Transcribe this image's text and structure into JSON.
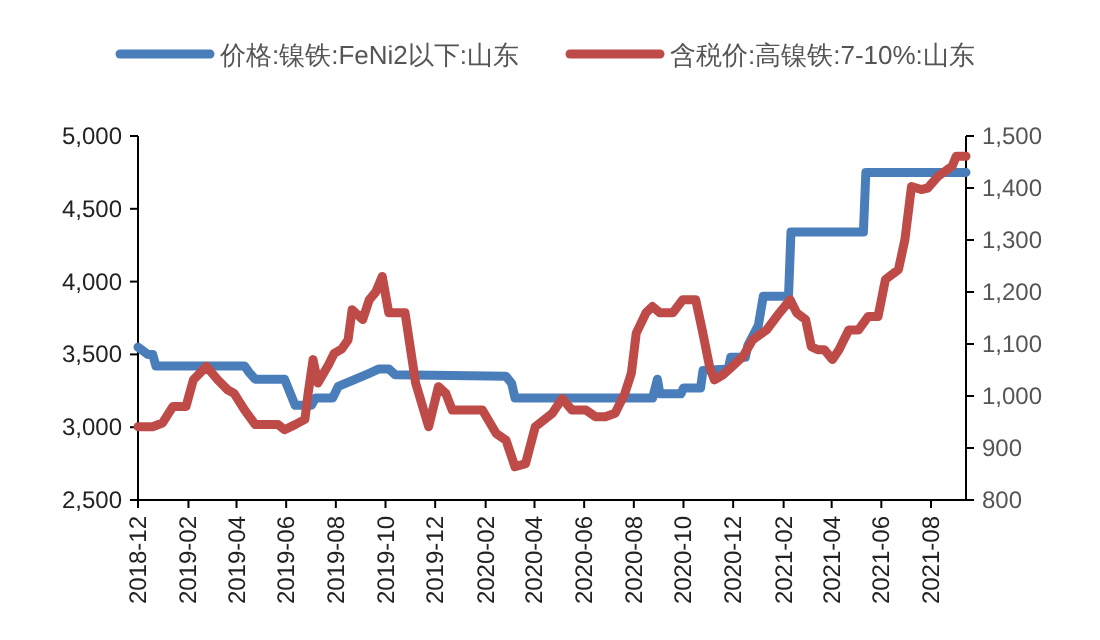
{
  "chart_data": {
    "type": "line",
    "legend": "top",
    "xlim": [
      "2018-12-01",
      "2021-09-13"
    ],
    "xticks": [
      "2018-12",
      "2019-02",
      "2019-04",
      "2019-06",
      "2019-08",
      "2019-10",
      "2019-12",
      "2020-02",
      "2020-04",
      "2020-06",
      "2020-08",
      "2020-10",
      "2020-12",
      "2021-02",
      "2021-04",
      "2021-06",
      "2021-08"
    ],
    "ylim": [
      2500,
      5000
    ],
    "yticks": [
      {
        "value": 2500,
        "label": "2,500"
      },
      {
        "value": 3000,
        "label": "3,000"
      },
      {
        "value": 3500,
        "label": "3,500"
      },
      {
        "value": 4000,
        "label": "4,000"
      },
      {
        "value": 4500,
        "label": "4,500"
      },
      {
        "value": 5000,
        "label": "5,000"
      }
    ],
    "y2lim": [
      800,
      1500
    ],
    "y2ticks": [
      800,
      900,
      {
        "value": 1000,
        "label": "1,000"
      },
      {
        "value": 1100,
        "label": "1,100"
      },
      {
        "value": 1200,
        "label": "1,200"
      },
      {
        "value": 1300,
        "label": "1,300"
      },
      {
        "value": 1400,
        "label": "1,400"
      },
      {
        "value": 1500,
        "label": "1,500"
      }
    ],
    "series": [
      {
        "name": "价格:镍铁:FeNi2以下:山东",
        "color": "#4a7ebb",
        "x": [
          "2018-12-01",
          "2018-12-13",
          "2018-12-19",
          "2018-12-23",
          "2019-04-11",
          "2019-04-16",
          "2019-04-24",
          "2019-05-30",
          "2019-06-12",
          "2019-07-02",
          "2019-07-07",
          "2019-07-28",
          "2019-08-04",
          "2019-08-21",
          "2019-09-11",
          "2019-09-23",
          "2019-10-05",
          "2019-10-13",
          "2020-02-26",
          "2020-03-04",
          "2020-03-08",
          "2020-08-24",
          "2020-08-30",
          "2020-09-02",
          "2020-09-28",
          "2020-10-01",
          "2020-10-22",
          "2020-10-25",
          "2020-11-25",
          "2020-11-28",
          "2020-12-16",
          "2020-12-19",
          "2021-01-01",
          "2021-01-07",
          "2021-02-07",
          "2021-02-10",
          "2021-05-10",
          "2021-05-13",
          "2021-09-13"
        ],
        "values": [
          3550,
          3500,
          3500,
          3420,
          3420,
          3380,
          3330,
          3330,
          3150,
          3150,
          3200,
          3200,
          3280,
          3320,
          3370,
          3400,
          3400,
          3360,
          3350,
          3300,
          3200,
          3200,
          3330,
          3230,
          3230,
          3270,
          3270,
          3390,
          3400,
          3480,
          3480,
          3560,
          3700,
          3900,
          3900,
          4340,
          4340,
          4750,
          4750
        ]
      },
      {
        "name": "含税价:高镍铁:7-10%:山东",
        "color": "#be4b48",
        "axis": "y2",
        "x": [
          "2018-12-01",
          "2018-12-19",
          "2018-12-31",
          "2019-01-13",
          "2019-01-29",
          "2019-02-07",
          "2019-02-23",
          "2019-03-09",
          "2019-03-21",
          "2019-03-29",
          "2019-04-11",
          "2019-04-24",
          "2019-05-22",
          "2019-05-30",
          "2019-06-12",
          "2019-06-24",
          "2019-06-28",
          "2019-07-04",
          "2019-07-10",
          "2019-07-23",
          "2019-07-30",
          "2019-08-08",
          "2019-08-16",
          "2019-08-21",
          "2019-09-03",
          "2019-09-11",
          "2019-09-19",
          "2019-09-27",
          "2019-10-05",
          "2019-10-25",
          "2019-11-07",
          "2019-11-23",
          "2019-12-05",
          "2019-12-14",
          "2019-12-22",
          "2020-01-28",
          "2020-02-14",
          "2020-02-26",
          "2020-03-08",
          "2020-03-21",
          "2020-04-02",
          "2020-04-23",
          "2020-05-05",
          "2020-05-17",
          "2020-06-03",
          "2020-06-15",
          "2020-06-27",
          "2020-07-09",
          "2020-07-21",
          "2020-07-29",
          "2020-08-04",
          "2020-08-16",
          "2020-08-24",
          "2020-09-02",
          "2020-09-18",
          "2020-09-30",
          "2020-10-16",
          "2020-10-24",
          "2020-11-02",
          "2020-11-08",
          "2020-11-18",
          "2020-11-30",
          "2020-12-13",
          "2020-12-25",
          "2021-01-11",
          "2021-01-27",
          "2021-02-09",
          "2021-02-17",
          "2021-02-28",
          "2021-03-07",
          "2021-03-15",
          "2021-03-23",
          "2021-04-02",
          "2021-04-10",
          "2021-04-22",
          "2021-05-04",
          "2021-05-16",
          "2021-05-28",
          "2021-06-06",
          "2021-06-22",
          "2021-06-30",
          "2021-07-08",
          "2021-07-20",
          "2021-07-28",
          "2021-08-10",
          "2021-08-27",
          "2021-09-01",
          "2021-09-13"
        ],
        "values": [
          941,
          941,
          948,
          980,
          980,
          1031,
          1057,
          1031,
          1012,
          1005,
          973,
          945,
          945,
          935,
          945,
          955,
          1005,
          1070,
          1025,
          1060,
          1082,
          1090,
          1108,
          1166,
          1147,
          1185,
          1200,
          1230,
          1160,
          1160,
          1025,
          941,
          1018,
          1005,
          973,
          973,
          928,
          915,
          864,
          870,
          941,
          967,
          995,
          973,
          973,
          960,
          960,
          967,
          1005,
          1044,
          1121,
          1160,
          1172,
          1160,
          1160,
          1185,
          1185,
          1127,
          1057,
          1031,
          1040,
          1057,
          1076,
          1108,
          1127,
          1160,
          1185,
          1160,
          1147,
          1095,
          1089,
          1089,
          1070,
          1089,
          1127,
          1127,
          1153,
          1153,
          1224,
          1243,
          1301,
          1403,
          1397,
          1400,
          1423,
          1442,
          1461,
          1461
        ]
      }
    ]
  }
}
